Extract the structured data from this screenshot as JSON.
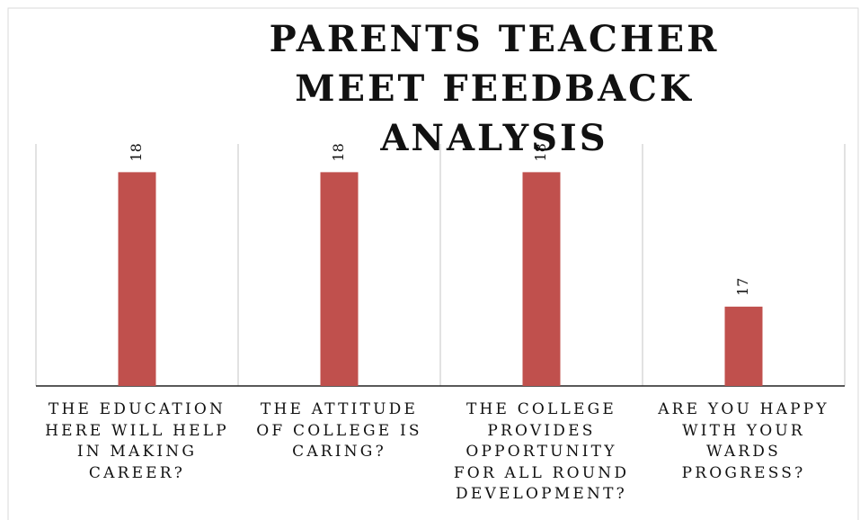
{
  "chart_data": {
    "type": "bar",
    "title": "PARENTS TEACHER MEET FEEDBACK ANALYSIS",
    "categories": [
      "THE EDUCATION HERE WILL HELP IN MAKING CAREER?",
      "THE ATTITUDE OF COLLEGE IS CARING?",
      "THE COLLEGE PROVIDES OPPORTUNITY FOR ALL ROUND DEVELOPMENT?",
      "ARE YOU HAPPY WITH YOUR WARDS PROGRESS?"
    ],
    "values": [
      18,
      18,
      18,
      17
    ],
    "color": "#c0504d",
    "ylim": [
      16.41,
      18.21
    ]
  }
}
